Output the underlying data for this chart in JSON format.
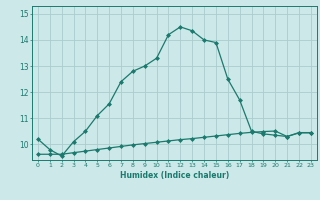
{
  "xlabel": "Humidex (Indice chaleur)",
  "ylabel": "",
  "background_color": "#cce8e8",
  "grid_color": "#aacccc",
  "line_color": "#1a7a6e",
  "x_ticks": [
    0,
    1,
    2,
    3,
    4,
    5,
    6,
    7,
    8,
    9,
    10,
    11,
    12,
    13,
    14,
    15,
    16,
    17,
    18,
    19,
    20,
    21,
    22,
    23
  ],
  "y_ticks": [
    10,
    11,
    12,
    13,
    14,
    15
  ],
  "ylim": [
    9.4,
    15.3
  ],
  "xlim": [
    -0.5,
    23.5
  ],
  "curve1_x": [
    0,
    1,
    2,
    3,
    4,
    5,
    6,
    7,
    8,
    9,
    10,
    11,
    12,
    13,
    14,
    15,
    16,
    17,
    18,
    19,
    20,
    21,
    22,
    23
  ],
  "curve1_y": [
    10.2,
    9.8,
    9.55,
    10.1,
    10.5,
    11.1,
    11.55,
    12.4,
    12.8,
    13.0,
    13.3,
    14.2,
    14.5,
    14.35,
    14.0,
    13.9,
    12.5,
    11.7,
    10.5,
    10.4,
    10.35,
    10.3,
    10.45,
    10.45
  ],
  "curve2_x": [
    0,
    1,
    2,
    3,
    4,
    5,
    6,
    7,
    8,
    9,
    10,
    11,
    12,
    13,
    14,
    15,
    16,
    17,
    18,
    19,
    20,
    21,
    22,
    23
  ],
  "curve2_y": [
    9.62,
    9.62,
    9.62,
    9.68,
    9.74,
    9.8,
    9.86,
    9.92,
    9.98,
    10.03,
    10.08,
    10.13,
    10.18,
    10.22,
    10.27,
    10.32,
    10.37,
    10.42,
    10.46,
    10.49,
    10.51,
    10.3,
    10.44,
    10.44
  ]
}
